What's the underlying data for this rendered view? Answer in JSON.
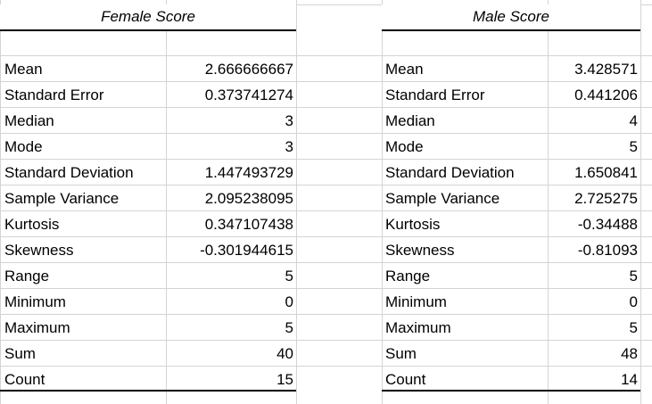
{
  "female": {
    "header": "Female Score",
    "rows": [
      {
        "label": "Mean",
        "value": "2.666666667"
      },
      {
        "label": "Standard Error",
        "value": "0.373741274"
      },
      {
        "label": "Median",
        "value": "3"
      },
      {
        "label": "Mode",
        "value": "3"
      },
      {
        "label": "Standard Deviation",
        "value": "1.447493729"
      },
      {
        "label": "Sample Variance",
        "value": "2.095238095"
      },
      {
        "label": "Kurtosis",
        "value": "0.347107438"
      },
      {
        "label": "Skewness",
        "value": "-0.301944615"
      },
      {
        "label": "Range",
        "value": "5"
      },
      {
        "label": "Minimum",
        "value": "0"
      },
      {
        "label": "Maximum",
        "value": "5"
      },
      {
        "label": "Sum",
        "value": "40"
      },
      {
        "label": "Count",
        "value": "15"
      }
    ]
  },
  "male": {
    "header": "Male Score",
    "rows": [
      {
        "label": "Mean",
        "value": "3.428571"
      },
      {
        "label": "Standard Error",
        "value": "0.441206"
      },
      {
        "label": "Median",
        "value": "4"
      },
      {
        "label": "Mode",
        "value": "5"
      },
      {
        "label": "Standard Deviation",
        "value": "1.650841"
      },
      {
        "label": "Sample Variance",
        "value": "2.725275"
      },
      {
        "label": "Kurtosis",
        "value": "-0.34488"
      },
      {
        "label": "Skewness",
        "value": "-0.81093"
      },
      {
        "label": "Range",
        "value": "5"
      },
      {
        "label": "Minimum",
        "value": "0"
      },
      {
        "label": "Maximum",
        "value": "5"
      },
      {
        "label": "Sum",
        "value": "48"
      },
      {
        "label": "Count",
        "value": "14"
      }
    ]
  }
}
